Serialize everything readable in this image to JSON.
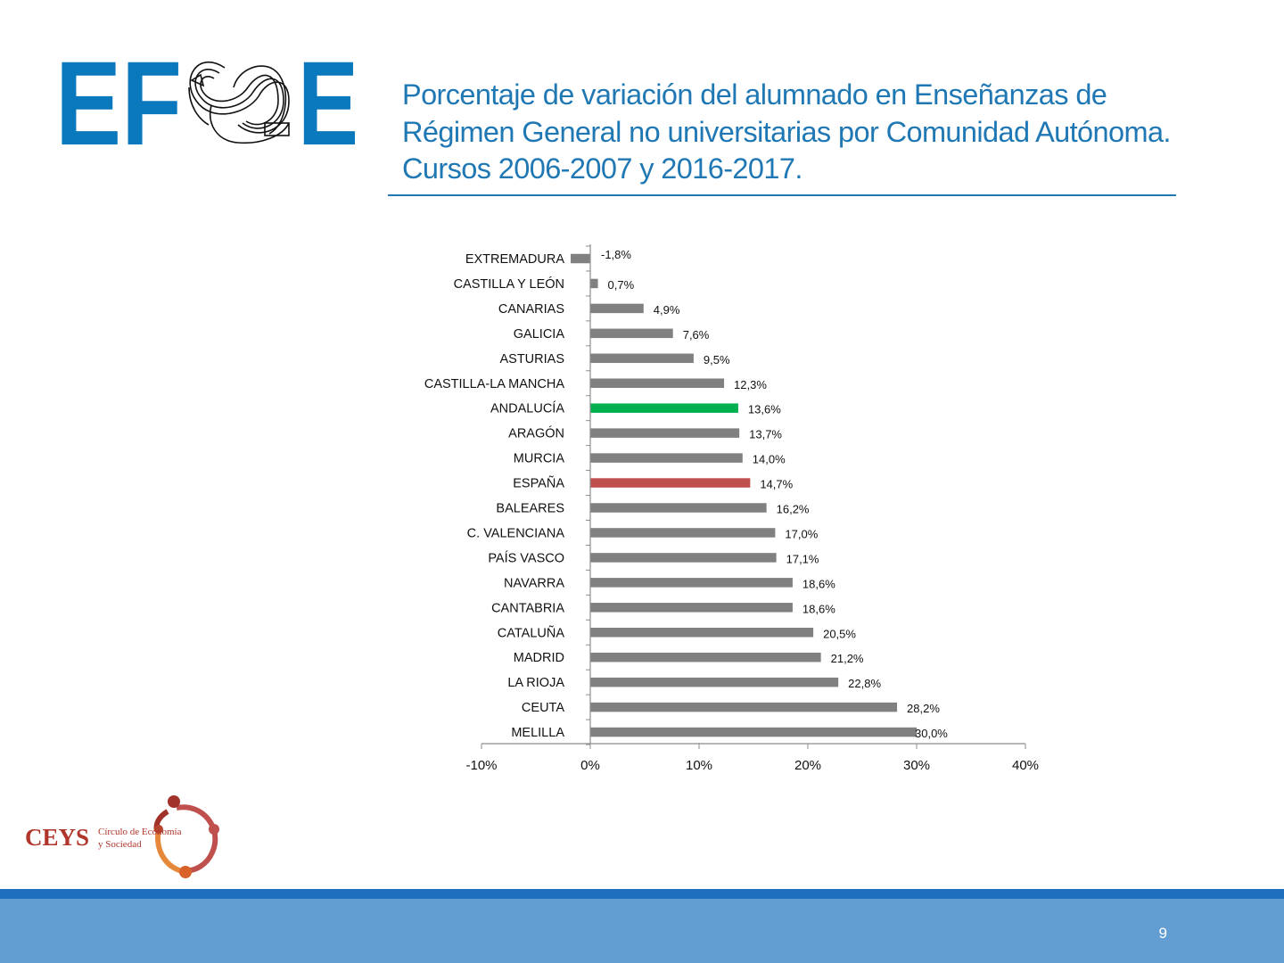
{
  "logo": {
    "letters_left": "EF",
    "letters_right": "E"
  },
  "title": "Porcentaje de variación del alumnado en Enseñanzas de Régimen General no universitarias por Comunidad Autónoma. Cursos 2006-2007 y 2016-2017.",
  "chart_data": {
    "type": "bar",
    "orientation": "horizontal",
    "categories": [
      "EXTREMADURA",
      "CASTILLA Y LEÓN",
      "CANARIAS",
      "GALICIA",
      "ASTURIAS",
      "CASTILLA-LA MANCHA",
      "ANDALUCÍA",
      "ARAGÓN",
      "MURCIA",
      "ESPAÑA",
      "BALEARES",
      "C. VALENCIANA",
      "PAÍS VASCO",
      "NAVARRA",
      "CANTABRIA",
      "CATALUÑA",
      "MADRID",
      "LA RIOJA",
      "CEUTA",
      "MELILLA"
    ],
    "values": [
      -1.8,
      0.7,
      4.9,
      7.6,
      9.5,
      12.3,
      13.6,
      13.7,
      14.0,
      14.7,
      16.2,
      17.0,
      17.1,
      18.6,
      18.6,
      20.5,
      21.2,
      22.8,
      28.2,
      30.0
    ],
    "data_labels": [
      "-1,8%",
      "0,7%",
      "4,9%",
      "7,6%",
      "9,5%",
      "12,3%",
      "13,6%",
      "13,7%",
      "14,0%",
      "14,7%",
      "16,2%",
      "17,0%",
      "17,1%",
      "18,6%",
      "18,6%",
      "20,5%",
      "21,2%",
      "22,8%",
      "28,2%",
      "30,0%"
    ],
    "xlim": [
      -10,
      40
    ],
    "xticks": [
      -10,
      0,
      10,
      20,
      30,
      40
    ],
    "xtick_labels": [
      "-10%",
      "0%",
      "10%",
      "20%",
      "30%",
      "40%"
    ],
    "bar_color": "#808080",
    "highlights": {
      "ANDALUCÍA": "#00b050",
      "ESPAÑA": "#c0504d"
    },
    "grid": false,
    "legend": "none"
  },
  "ceys": {
    "abbr": "CEYS",
    "line1": "Círculo de Economía",
    "line2": "y Sociedad"
  },
  "footer": {
    "page_number": "9"
  }
}
